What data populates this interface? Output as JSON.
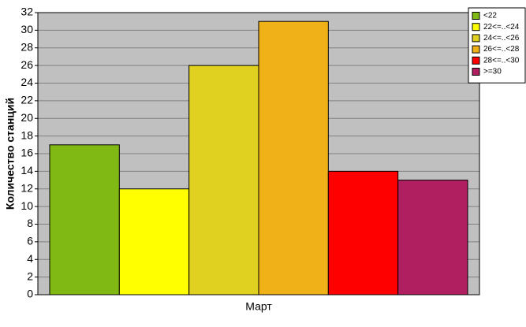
{
  "chart_data": {
    "type": "bar",
    "ylabel": "Количество станций",
    "categories": [
      "Март"
    ],
    "series": [
      {
        "name": "<22",
        "color": "#80b814",
        "values": [
          17
        ]
      },
      {
        "name": "22<=..<24",
        "color": "#ffff00",
        "values": [
          12
        ]
      },
      {
        "name": "24<=..<26",
        "color": "#e0d020",
        "values": [
          26
        ]
      },
      {
        "name": "26<=..<28",
        "color": "#f0b018",
        "values": [
          31
        ]
      },
      {
        "name": "28<=..<30",
        "color": "#ff0000",
        "values": [
          14
        ]
      },
      {
        "name": ">=30",
        "color": "#b02060",
        "values": [
          13
        ]
      }
    ],
    "ylim": [
      0,
      32
    ],
    "yticks": [
      0,
      2,
      4,
      6,
      8,
      10,
      12,
      14,
      16,
      18,
      20,
      22,
      24,
      26,
      28,
      30,
      32
    ],
    "grid": true,
    "legend": "top-right"
  }
}
